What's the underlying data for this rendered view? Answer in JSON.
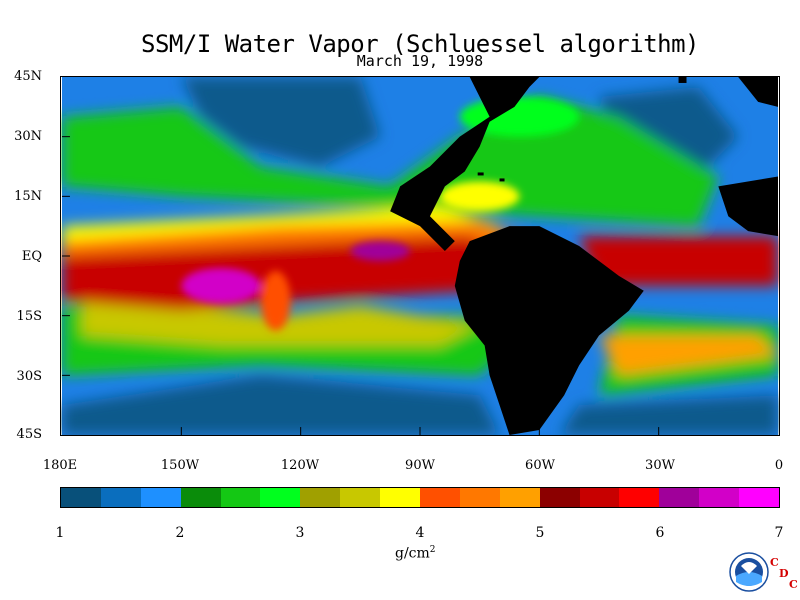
{
  "header": {
    "title": "SSM/I Water Vapor (Schluessel algorithm)",
    "date": "March 19, 1998"
  },
  "map": {
    "lat_labels": [
      "45N",
      "30N",
      "15N",
      "EQ",
      "15S",
      "30S",
      "45S"
    ],
    "lon_labels": [
      "180E",
      "150W",
      "120W",
      "90W",
      "60W",
      "30W",
      "0"
    ],
    "land_color": "#000000",
    "ocean_base_color": "#1a64b4"
  },
  "colorbar": {
    "labels": [
      "1",
      "2",
      "3",
      "4",
      "5",
      "6",
      "7"
    ],
    "units_text": "g/cm",
    "units_exponent": "2",
    "colors": [
      "#08507a",
      "#0a6ebe",
      "#1e90ff",
      "#0a8c0a",
      "#14c814",
      "#00ff1e",
      "#a0a000",
      "#c8c800",
      "#ffff00",
      "#ff5000",
      "#ff7800",
      "#ffa000",
      "#8c0000",
      "#c80000",
      "#ff0000",
      "#a0009a",
      "#d200c8",
      "#ff00ff"
    ]
  },
  "branding": {
    "logo_text": "NOAA",
    "cdc_letters": [
      "C",
      "D",
      "C"
    ]
  }
}
